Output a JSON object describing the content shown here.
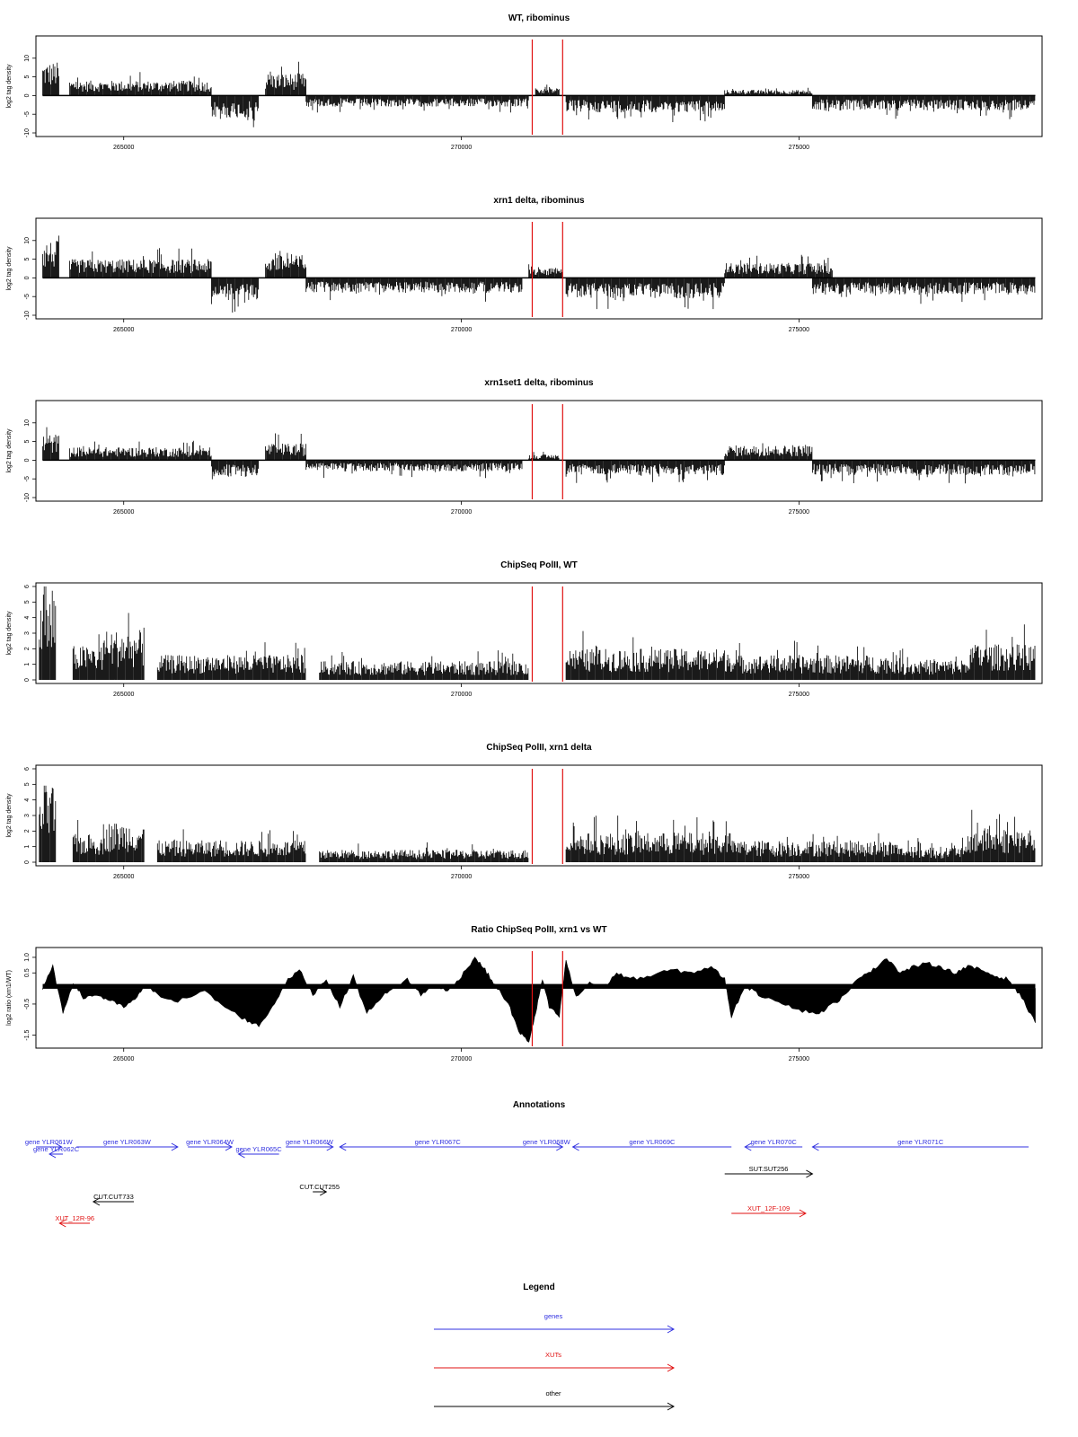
{
  "colors": {
    "gene": "#3030e0",
    "xut": "#e01010",
    "other": "#000000",
    "marker": "#e01010",
    "signal": "#000000"
  },
  "chart_data": [
    {
      "type": "bar",
      "title": "WT, ribominus",
      "ylabel": "log2 tag density",
      "xlim": [
        263700,
        278600
      ],
      "ylim": [
        -10,
        15
      ],
      "yticks": [
        {
          "v": 10,
          "l": "10"
        },
        {
          "v": 5,
          "l": "5"
        },
        {
          "v": 0,
          "l": "0"
        },
        {
          "v": -5,
          "l": "-5"
        },
        {
          "v": -10,
          "l": "-10"
        }
      ],
      "xticks": [
        {
          "v": 265000,
          "l": "265000"
        },
        {
          "v": 270000,
          "l": "270000"
        },
        {
          "v": 275000,
          "l": "275000"
        }
      ],
      "markers": [
        271050,
        271500
      ],
      "segments": [
        {
          "from": 263800,
          "to": 264050,
          "amp": 9,
          "sign": 1
        },
        {
          "from": 264200,
          "to": 266300,
          "amp": 4,
          "sign": 1
        },
        {
          "from": 266300,
          "to": 267000,
          "amp": 6,
          "sign": -1
        },
        {
          "from": 267100,
          "to": 267700,
          "amp": 6,
          "sign": 1
        },
        {
          "from": 267700,
          "to": 271000,
          "amp": 3,
          "sign": -1
        },
        {
          "from": 271100,
          "to": 271450,
          "amp": 2,
          "sign": 1
        },
        {
          "from": 271550,
          "to": 273900,
          "amp": 4.5,
          "sign": -1
        },
        {
          "from": 273900,
          "to": 275200,
          "amp": 1.5,
          "sign": 1
        },
        {
          "from": 275200,
          "to": 278500,
          "amp": 4,
          "sign": -1
        }
      ]
    },
    {
      "type": "bar",
      "title": "xrn1 delta, ribominus",
      "ylabel": "log2 tag density",
      "xlim": [
        263700,
        278600
      ],
      "ylim": [
        -10,
        15
      ],
      "yticks": [
        {
          "v": 10,
          "l": "10"
        },
        {
          "v": 5,
          "l": "5"
        },
        {
          "v": 0,
          "l": "0"
        },
        {
          "v": -5,
          "l": "-5"
        },
        {
          "v": -10,
          "l": "-10"
        }
      ],
      "xticks": [
        {
          "v": 265000,
          "l": "265000"
        },
        {
          "v": 270000,
          "l": "270000"
        },
        {
          "v": 275000,
          "l": "275000"
        }
      ],
      "markers": [
        271050,
        271500
      ],
      "segments": [
        {
          "from": 263800,
          "to": 264050,
          "amp": 10,
          "sign": 1
        },
        {
          "from": 264200,
          "to": 266300,
          "amp": 5,
          "sign": 1
        },
        {
          "from": 266300,
          "to": 267000,
          "amp": 6,
          "sign": -1
        },
        {
          "from": 267100,
          "to": 267700,
          "amp": 6,
          "sign": 1
        },
        {
          "from": 267700,
          "to": 270900,
          "amp": 4,
          "sign": -1
        },
        {
          "from": 271000,
          "to": 271500,
          "amp": 2.5,
          "sign": 1
        },
        {
          "from": 271550,
          "to": 273900,
          "amp": 5.5,
          "sign": -1
        },
        {
          "from": 273900,
          "to": 275500,
          "amp": 4,
          "sign": 1
        },
        {
          "from": 275200,
          "to": 278500,
          "amp": 4.5,
          "sign": -1
        }
      ]
    },
    {
      "type": "bar",
      "title": "xrn1set1 delta, ribominus",
      "ylabel": "log2 tag density",
      "xlim": [
        263700,
        278600
      ],
      "ylim": [
        -10,
        15
      ],
      "yticks": [
        {
          "v": 10,
          "l": "10"
        },
        {
          "v": 5,
          "l": "5"
        },
        {
          "v": 0,
          "l": "0"
        },
        {
          "v": -5,
          "l": "-5"
        },
        {
          "v": -10,
          "l": "-10"
        }
      ],
      "xticks": [
        {
          "v": 265000,
          "l": "265000"
        },
        {
          "v": 270000,
          "l": "270000"
        },
        {
          "v": 275000,
          "l": "275000"
        }
      ],
      "markers": [
        271050,
        271500
      ],
      "segments": [
        {
          "from": 263800,
          "to": 264050,
          "amp": 7,
          "sign": 1
        },
        {
          "from": 264200,
          "to": 266300,
          "amp": 3.5,
          "sign": 1
        },
        {
          "from": 266300,
          "to": 267000,
          "amp": 4.5,
          "sign": -1
        },
        {
          "from": 267100,
          "to": 267700,
          "amp": 4.5,
          "sign": 1
        },
        {
          "from": 267700,
          "to": 270900,
          "amp": 3,
          "sign": -1
        },
        {
          "from": 271000,
          "to": 271450,
          "amp": 1.5,
          "sign": 1
        },
        {
          "from": 271550,
          "to": 273900,
          "amp": 4,
          "sign": -1
        },
        {
          "from": 273900,
          "to": 275200,
          "amp": 4,
          "sign": 1
        },
        {
          "from": 275200,
          "to": 278500,
          "amp": 4,
          "sign": -1
        }
      ]
    },
    {
      "type": "bar",
      "title": "ChipSeq PolII, WT",
      "ylabel": "log2 tag density",
      "xlim": [
        263700,
        278600
      ],
      "ylim": [
        0,
        6
      ],
      "yticks": [
        {
          "v": 6,
          "l": "6"
        },
        {
          "v": 5,
          "l": "5"
        },
        {
          "v": 4,
          "l": "4"
        },
        {
          "v": 3,
          "l": "3"
        },
        {
          "v": 2,
          "l": "2"
        },
        {
          "v": 1,
          "l": "1"
        },
        {
          "v": 0,
          "l": "0"
        }
      ],
      "xticks": [
        {
          "v": 265000,
          "l": "265000"
        },
        {
          "v": 270000,
          "l": "270000"
        },
        {
          "v": 275000,
          "l": "275000"
        }
      ],
      "markers": [
        271050,
        271500
      ],
      "segments": [
        {
          "from": 263750,
          "to": 264000,
          "amp": 5.3,
          "sign": 1
        },
        {
          "from": 264250,
          "to": 264700,
          "amp": 2.2,
          "sign": 1
        },
        {
          "from": 264700,
          "to": 265300,
          "amp": 3.2,
          "sign": 1
        },
        {
          "from": 265500,
          "to": 267700,
          "amp": 1.6,
          "sign": 1
        },
        {
          "from": 267900,
          "to": 271000,
          "amp": 1.2,
          "sign": 1
        },
        {
          "from": 271550,
          "to": 274000,
          "amp": 2.0,
          "sign": 1
        },
        {
          "from": 274000,
          "to": 276500,
          "amp": 1.6,
          "sign": 1
        },
        {
          "from": 276500,
          "to": 277500,
          "amp": 1.3,
          "sign": 1
        },
        {
          "from": 277500,
          "to": 278500,
          "amp": 2.3,
          "sign": 1
        }
      ]
    },
    {
      "type": "bar",
      "title": "ChipSeq PolII, xrn1 delta",
      "ylabel": "log2 tag density",
      "xlim": [
        263700,
        278600
      ],
      "ylim": [
        0,
        6
      ],
      "yticks": [
        {
          "v": 6,
          "l": "6"
        },
        {
          "v": 5,
          "l": "5"
        },
        {
          "v": 4,
          "l": "4"
        },
        {
          "v": 3,
          "l": "3"
        },
        {
          "v": 2,
          "l": "2"
        },
        {
          "v": 1,
          "l": "1"
        },
        {
          "v": 0,
          "l": "0"
        }
      ],
      "xticks": [
        {
          "v": 265000,
          "l": "265000"
        },
        {
          "v": 270000,
          "l": "270000"
        },
        {
          "v": 275000,
          "l": "275000"
        }
      ],
      "markers": [
        271050,
        271500
      ],
      "segments": [
        {
          "from": 263750,
          "to": 264000,
          "amp": 5.0,
          "sign": 1
        },
        {
          "from": 264250,
          "to": 264700,
          "amp": 1.8,
          "sign": 1
        },
        {
          "from": 264700,
          "to": 265300,
          "amp": 2.6,
          "sign": 1
        },
        {
          "from": 265500,
          "to": 267700,
          "amp": 1.4,
          "sign": 1
        },
        {
          "from": 267900,
          "to": 271000,
          "amp": 0.8,
          "sign": 1
        },
        {
          "from": 271550,
          "to": 274000,
          "amp": 1.9,
          "sign": 1
        },
        {
          "from": 274000,
          "to": 276500,
          "amp": 1.4,
          "sign": 1
        },
        {
          "from": 276500,
          "to": 277500,
          "amp": 1.0,
          "sign": 1
        },
        {
          "from": 277500,
          "to": 278500,
          "amp": 2.2,
          "sign": 1
        }
      ]
    },
    {
      "type": "area",
      "title": "Ratio ChipSeq PolII, xrn1 vs WT",
      "ylabel": "log2 ratio (xrn1/WT)",
      "xlim": [
        263700,
        278600
      ],
      "ylim": [
        -1.8,
        1.2
      ],
      "yticks": [
        {
          "v": 1.0,
          "l": "1.0"
        },
        {
          "v": 0.5,
          "l": "0.5"
        },
        {
          "v": -0.5,
          "l": "-0.5"
        },
        {
          "v": -1.5,
          "l": "-1.5"
        }
      ],
      "xticks": [
        {
          "v": 265000,
          "l": "265000"
        },
        {
          "v": 270000,
          "l": "270000"
        },
        {
          "v": 275000,
          "l": "275000"
        }
      ],
      "markers": [
        271050,
        271500
      ],
      "x": [
        263800,
        263950,
        264100,
        264250,
        264400,
        264600,
        264800,
        265000,
        265200,
        265300,
        265500,
        265800,
        266200,
        266500,
        266800,
        267000,
        267200,
        267400,
        267600,
        267800,
        268000,
        268200,
        268400,
        268600,
        268800,
        269000,
        269200,
        269400,
        269600,
        269800,
        270000,
        270200,
        270350,
        270500,
        270700,
        270850,
        271000,
        271100,
        271200,
        271300,
        271450,
        271550,
        271700,
        271900,
        272100,
        272300,
        272500,
        272800,
        273100,
        273400,
        273700,
        273900,
        274000,
        274200,
        274400,
        274700,
        275000,
        275300,
        275500,
        275700,
        275900,
        276100,
        276300,
        276500,
        276700,
        276900,
        277100,
        277300,
        277500,
        277700,
        277900,
        278100,
        278300,
        278500
      ],
      "y": [
        0.0,
        0.7,
        -0.8,
        0.2,
        -0.3,
        -0.2,
        -0.4,
        -0.6,
        -0.3,
        0.1,
        -0.2,
        -0.4,
        -0.1,
        -0.6,
        -1.0,
        -1.2,
        -0.6,
        0.2,
        0.6,
        -0.2,
        0.3,
        -0.6,
        0.4,
        -0.8,
        -0.3,
        0.0,
        0.3,
        -0.2,
        0.1,
        -0.1,
        0.4,
        1.0,
        0.6,
        0.1,
        -0.5,
        -1.4,
        -1.7,
        -0.8,
        0.3,
        -0.6,
        -0.9,
        0.9,
        -0.3,
        0.2,
        0.0,
        0.5,
        0.3,
        0.4,
        0.6,
        0.5,
        0.7,
        0.3,
        -0.9,
        0.1,
        -0.2,
        -0.4,
        -0.7,
        -0.8,
        -0.5,
        -0.2,
        0.4,
        0.6,
        1.0,
        0.5,
        0.7,
        0.8,
        0.7,
        0.5,
        0.7,
        0.6,
        0.4,
        0.3,
        -0.3,
        -1.1
      ]
    }
  ],
  "annotations": {
    "title": "Annotations",
    "features": [
      {
        "label": "gene YLR061W",
        "kind": "gene",
        "dir": "R",
        "from": 263700,
        "to": 264080,
        "row": 0
      },
      {
        "label": "gene YLR062C",
        "kind": "gene",
        "dir": "L",
        "from": 263900,
        "to": 264100,
        "row": 1
      },
      {
        "label": "gene YLR063W",
        "kind": "gene",
        "dir": "R",
        "from": 264300,
        "to": 265800,
        "row": 0
      },
      {
        "label": "gene YLR064W",
        "kind": "gene",
        "dir": "R",
        "from": 265950,
        "to": 266600,
        "row": 0
      },
      {
        "label": "gene YLR065C",
        "kind": "gene",
        "dir": "L",
        "from": 266700,
        "to": 267300,
        "row": 1
      },
      {
        "label": "gene YLR066W",
        "kind": "gene",
        "dir": "R",
        "from": 267400,
        "to": 268100,
        "row": 0
      },
      {
        "label": "gene YLR067C",
        "kind": "gene",
        "dir": "L",
        "from": 268200,
        "to": 271100,
        "row": 0
      },
      {
        "label": "gene YLR068W",
        "kind": "gene",
        "dir": "R",
        "from": 271020,
        "to": 271500,
        "row": 0
      },
      {
        "label": "gene YLR069C",
        "kind": "gene",
        "dir": "L",
        "from": 271650,
        "to": 274000,
        "row": 0
      },
      {
        "label": "gene YLR070C",
        "kind": "gene",
        "dir": "L",
        "from": 274200,
        "to": 275050,
        "row": 0
      },
      {
        "label": "gene YLR071C",
        "kind": "gene",
        "dir": "L",
        "from": 275200,
        "to": 278400,
        "row": 0
      },
      {
        "label": "SUT.SUT256",
        "kind": "other",
        "dir": "R",
        "from": 273900,
        "to": 275200,
        "row": 2
      },
      {
        "label": "CUT.CUT255",
        "kind": "other",
        "dir": "R",
        "from": 267800,
        "to": 268000,
        "row": 3
      },
      {
        "label": "CUT.CUT733",
        "kind": "other",
        "dir": "L",
        "from": 264550,
        "to": 265150,
        "row": 4
      },
      {
        "label": "XUT_12F-109",
        "kind": "xut",
        "dir": "R",
        "from": 274000,
        "to": 275100,
        "row": 5
      },
      {
        "label": "XUT_12R-96",
        "kind": "xut",
        "dir": "L",
        "from": 264050,
        "to": 264500,
        "row": 6
      }
    ]
  },
  "legend": {
    "title": "Legend",
    "items": [
      {
        "label": "genes",
        "kind": "gene"
      },
      {
        "label": "XUTs",
        "kind": "xut"
      },
      {
        "label": "other",
        "kind": "other"
      }
    ]
  }
}
